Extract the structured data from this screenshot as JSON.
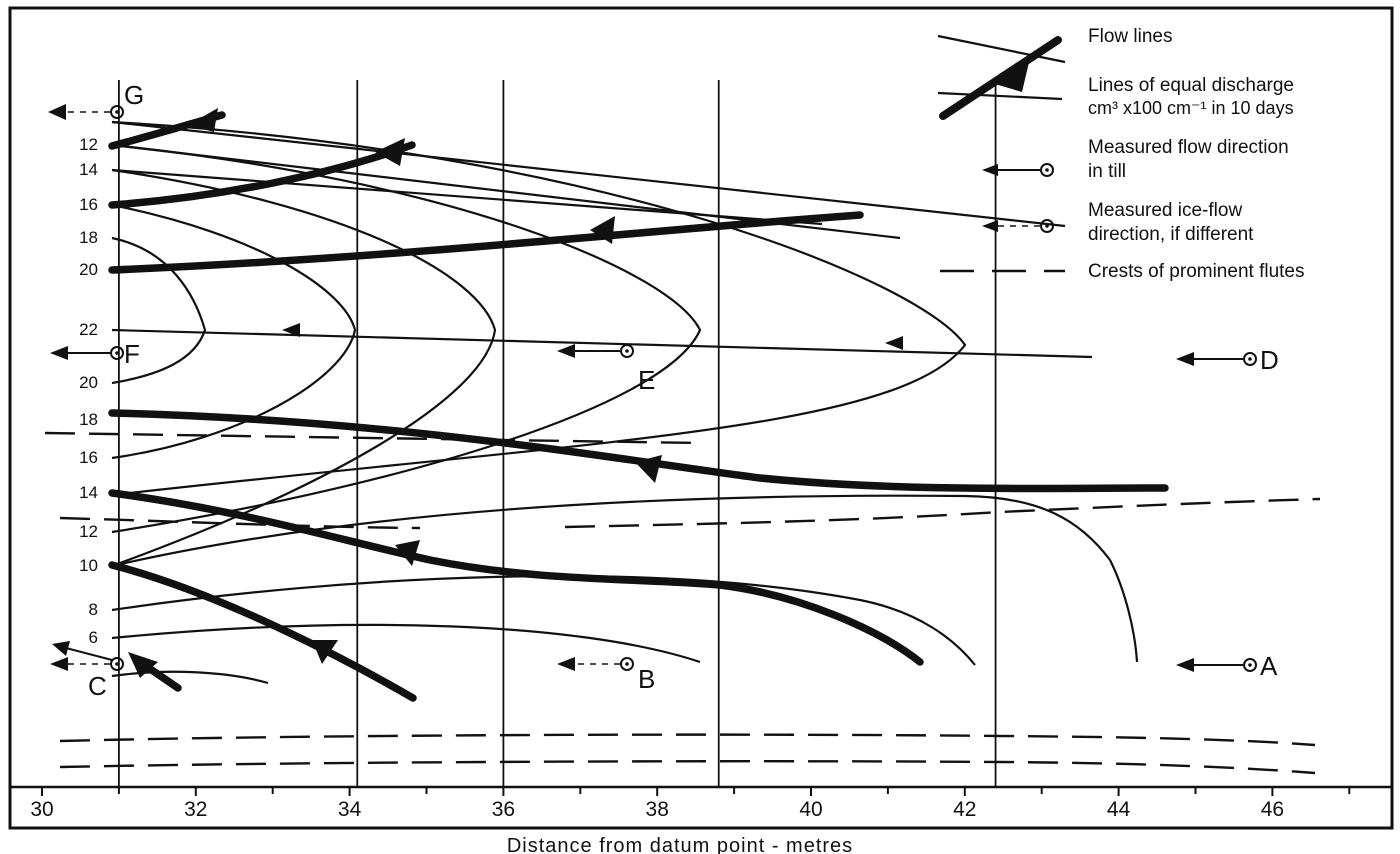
{
  "chart_data": {
    "type": "diagram",
    "xlabel": "Distance from datum point - metres",
    "xlim": [
      30,
      47
    ],
    "xticks": [
      30,
      32,
      34,
      36,
      38,
      40,
      42,
      44,
      46
    ],
    "verticals": [
      31,
      34.1,
      36,
      38.8,
      42.4
    ],
    "contour_labels": [
      {
        "text": "12",
        "y": 12
      },
      {
        "text": "14",
        "y": 14
      },
      {
        "text": "16",
        "y": 16
      },
      {
        "text": "18",
        "y": 18
      },
      {
        "text": "20",
        "y": 20
      },
      {
        "text": "22",
        "y": 22
      },
      {
        "text": "20",
        "y": 23.5
      },
      {
        "text": "18",
        "y": 26.5
      },
      {
        "text": "16",
        "y": 27.8
      },
      {
        "text": "14",
        "y": 29.5
      },
      {
        "text": "12",
        "y": 31
      },
      {
        "text": "10",
        "y": 32.5
      },
      {
        "text": "8",
        "y": 34
      },
      {
        "text": "6",
        "y": 35.5
      }
    ],
    "stations": [
      {
        "label": "G",
        "x": 31,
        "measured": "dashed"
      },
      {
        "label": "F",
        "x": 31,
        "measured": "solid"
      },
      {
        "label": "E",
        "x": 37.8,
        "measured": "solid"
      },
      {
        "label": "D",
        "x": 46.1,
        "measured": "solid"
      },
      {
        "label": "C",
        "x": 31,
        "measured": "both"
      },
      {
        "label": "B",
        "x": 37.8,
        "measured": "dashed"
      },
      {
        "label": "A",
        "x": 46.1,
        "measured": "solid"
      }
    ],
    "legend": [
      {
        "label": "Flow lines",
        "symbol": "thin-line"
      },
      {
        "label": "Lines of equal discharge",
        "sub": "cm³ x100 cm⁻¹ in 10 days",
        "symbol": "thick-line-arrow"
      },
      {
        "label": "Measured flow direction",
        "sub": "in till",
        "symbol": "solid-arrow-target"
      },
      {
        "label": "Measured ice-flow",
        "sub": "direction, if different",
        "symbol": "dashed-arrow-target"
      },
      {
        "label": "Crests of prominent flutes",
        "symbol": "long-dash"
      }
    ],
    "legend_position": "top-right",
    "colors": {
      "ink": "#111111",
      "background": "#ffffff"
    }
  }
}
